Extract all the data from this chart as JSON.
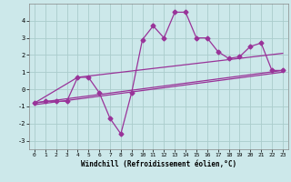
{
  "xlabel": "Windchill (Refroidissement éolien,°C)",
  "xlim": [
    -0.5,
    23.5
  ],
  "ylim": [
    -3.5,
    5.0
  ],
  "yticks": [
    -3,
    -2,
    -1,
    0,
    1,
    2,
    3,
    4
  ],
  "xticks": [
    0,
    1,
    2,
    3,
    4,
    5,
    6,
    7,
    8,
    9,
    10,
    11,
    12,
    13,
    14,
    15,
    16,
    17,
    18,
    19,
    20,
    21,
    22,
    23
  ],
  "background_color": "#cce8ea",
  "grid_color": "#aacccc",
  "line_color": "#993399",
  "line_width": 0.9,
  "marker_size": 2.5,
  "zigzag_x": [
    0,
    1,
    2,
    3,
    4,
    5,
    6,
    7,
    8,
    9,
    10,
    11,
    12,
    13,
    14,
    15,
    16,
    17,
    18,
    19,
    20,
    21,
    22,
    23
  ],
  "zigzag_y": [
    -0.8,
    -0.7,
    -0.7,
    -0.7,
    0.7,
    0.7,
    -0.2,
    -1.7,
    -2.6,
    -0.2,
    2.9,
    3.7,
    3.0,
    4.5,
    4.5,
    3.0,
    3.0,
    2.2,
    1.8,
    1.9,
    2.5,
    2.7,
    1.1,
    1.1
  ],
  "line1_x": [
    0,
    23
  ],
  "line1_y": [
    -0.8,
    1.1
  ],
  "line2_x": [
    0,
    4,
    23
  ],
  "line2_y": [
    -0.8,
    0.7,
    2.1
  ],
  "line3_x": [
    0,
    23
  ],
  "line3_y": [
    -0.9,
    1.0
  ]
}
